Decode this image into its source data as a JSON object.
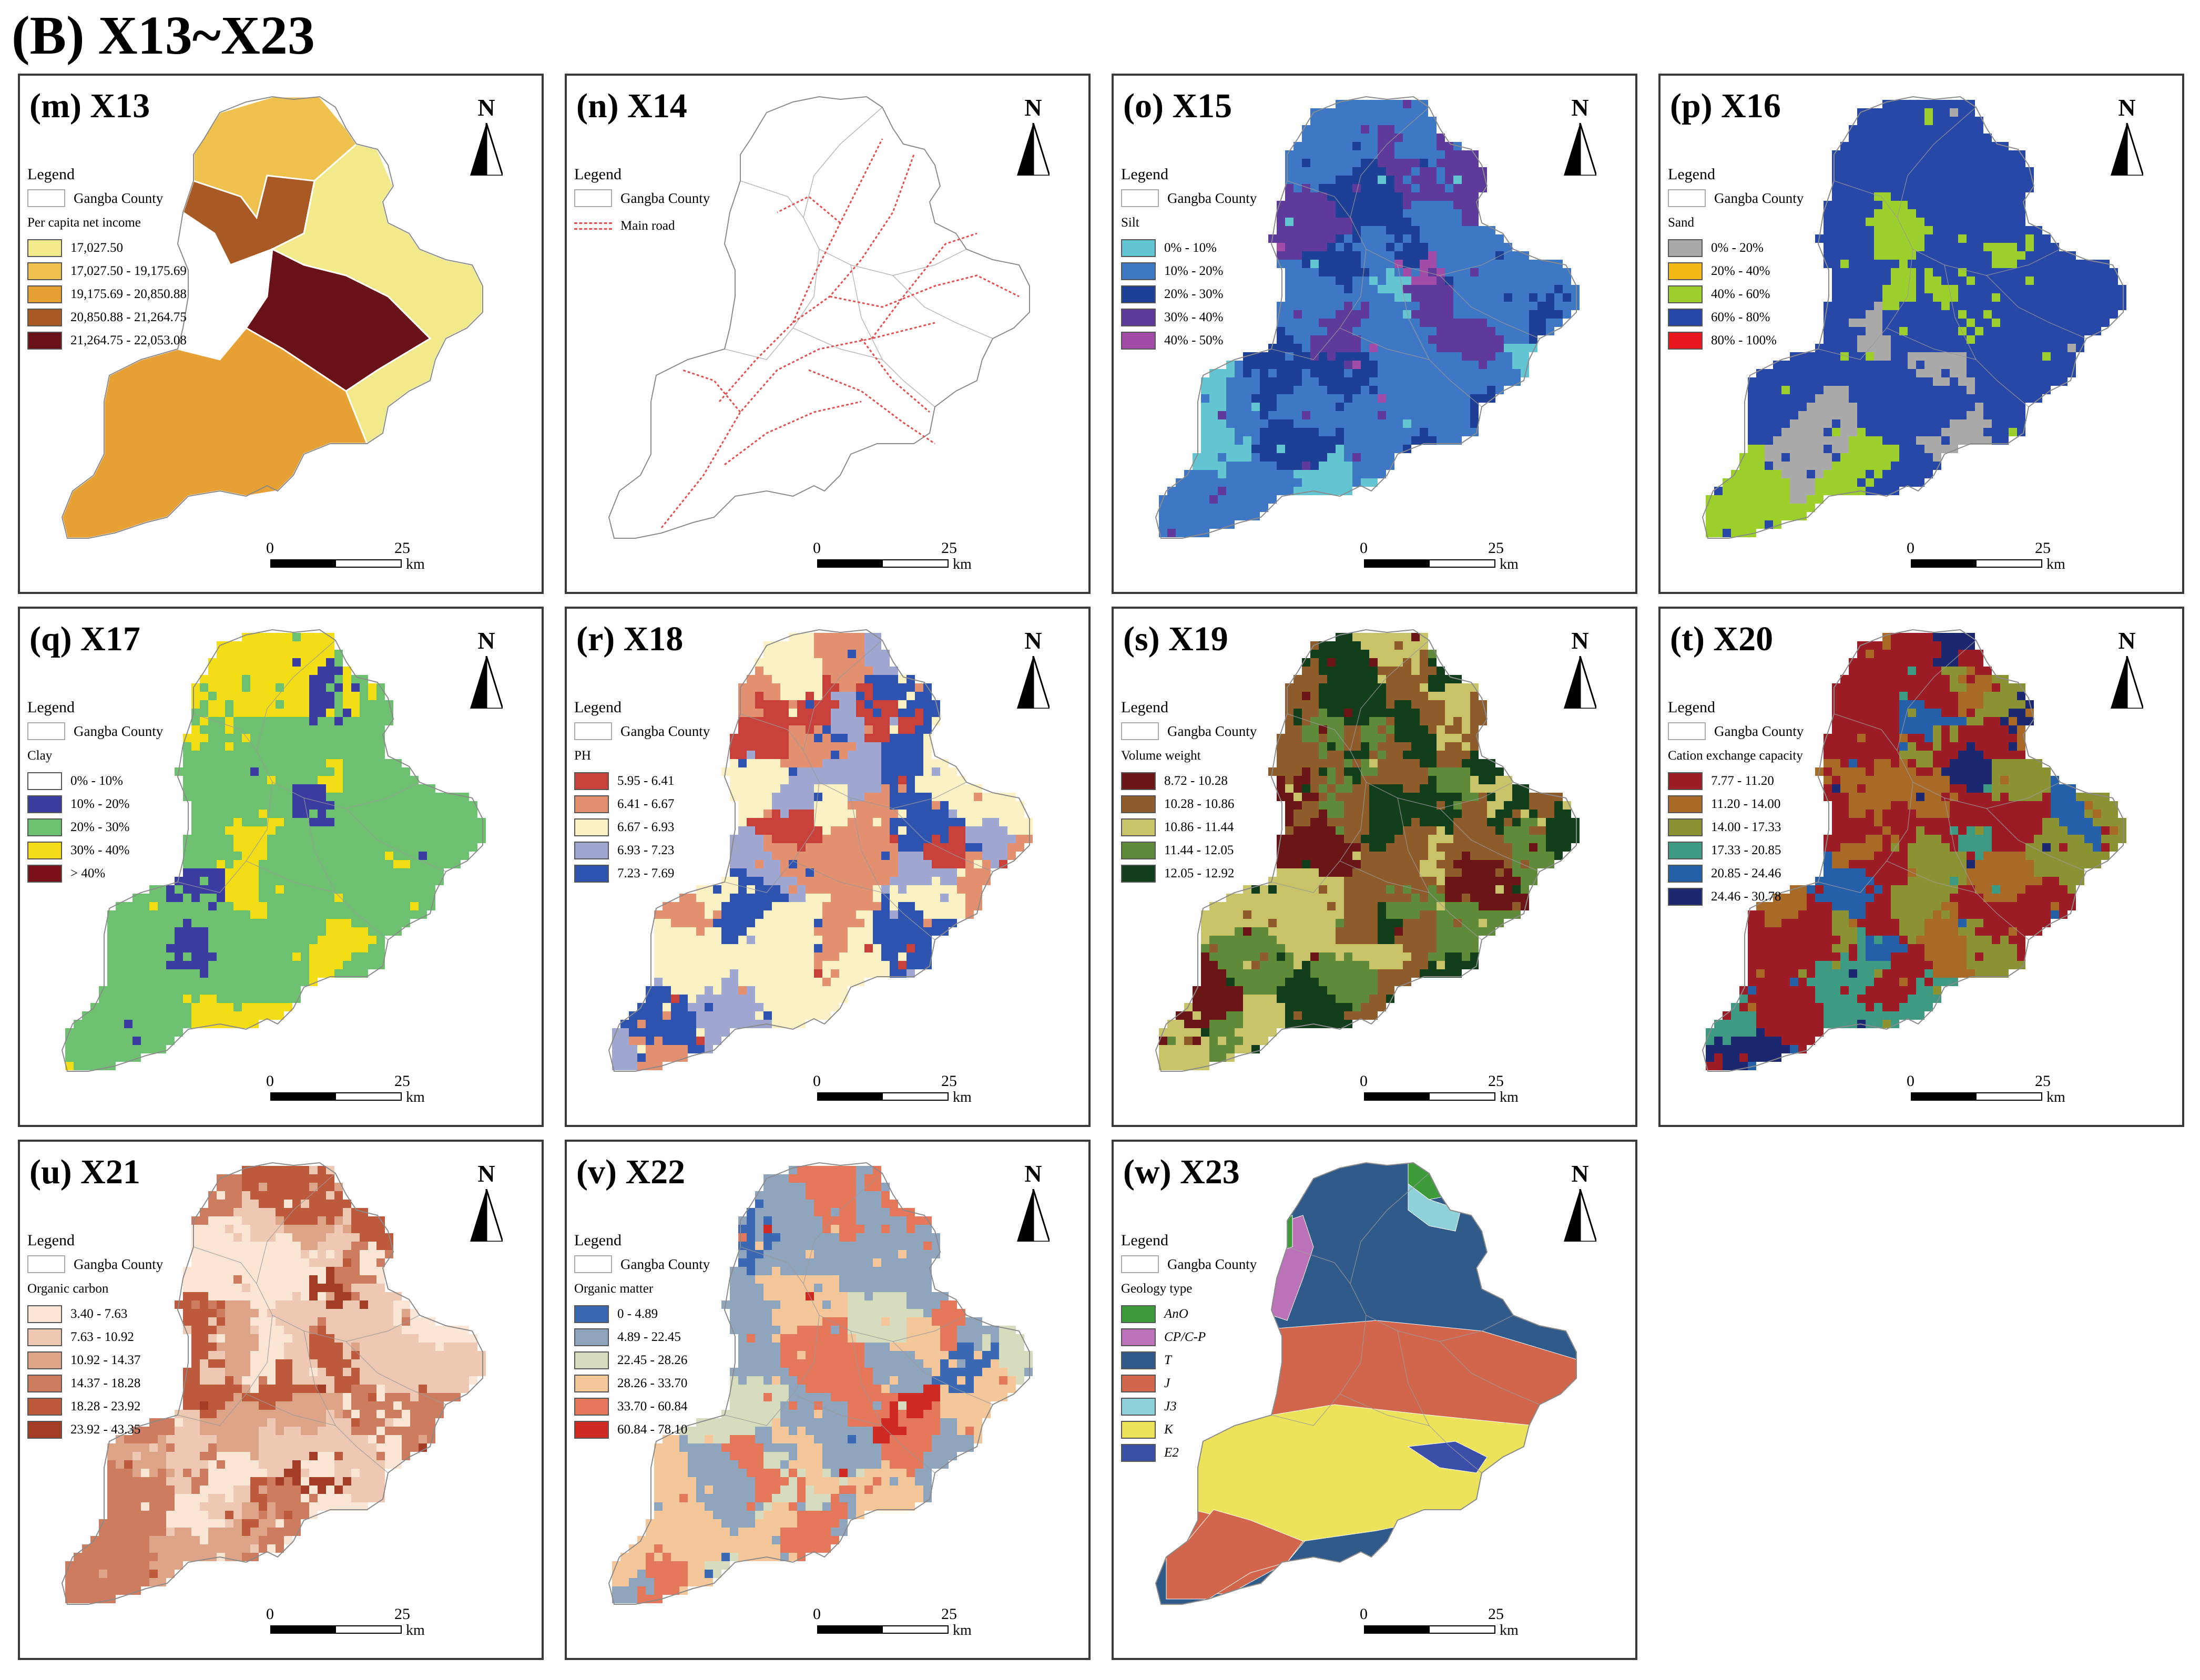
{
  "figure_title": "(B) X13~X23",
  "common": {
    "legend_heading": "Legend",
    "boundary_label": "Gangba County",
    "north_label": "N",
    "scale_start": "0",
    "scale_end": "25",
    "scale_unit": "km"
  },
  "panels": [
    {
      "id": "m",
      "title": "(m) X13",
      "type": "choropleth",
      "subtitle": "Per capita net income",
      "classes": [
        {
          "label": "17,027.50",
          "color": "#f2e98a"
        },
        {
          "label": "17,027.50 - 19,175.69",
          "color": "#efc24f"
        },
        {
          "label": "19,175.69 - 20,850.88",
          "color": "#e6a033"
        },
        {
          "label": "20,850.88 - 21,264.75",
          "color": "#a95a24"
        },
        {
          "label": "21,264.75 - 22,053.08",
          "color": "#6b1218"
        }
      ]
    },
    {
      "id": "n",
      "title": "(n) X14",
      "type": "roads",
      "road_label": "Main road",
      "road_color": "#e05050"
    },
    {
      "id": "o",
      "title": "(o) X15",
      "type": "raster",
      "subtitle": "Silt",
      "classes": [
        {
          "label": "0% - 10%",
          "color": "#63c4d2"
        },
        {
          "label": "10% - 20%",
          "color": "#3e78c4"
        },
        {
          "label": "20% - 30%",
          "color": "#1d3f96"
        },
        {
          "label": "30% - 40%",
          "color": "#5e3a9a"
        },
        {
          "label": "40% - 50%",
          "color": "#a14ca6"
        }
      ],
      "weights": [
        0.08,
        0.58,
        0.14,
        0.14,
        0.06
      ]
    },
    {
      "id": "p",
      "title": "(p) X16",
      "type": "raster",
      "subtitle": "Sand",
      "classes": [
        {
          "label": "0% - 20%",
          "color": "#a9a9a9"
        },
        {
          "label": "20% - 40%",
          "color": "#f4b915"
        },
        {
          "label": "40% - 60%",
          "color": "#9ccf2b"
        },
        {
          "label": "60% - 80%",
          "color": "#2848a8"
        },
        {
          "label": "80% - 100%",
          "color": "#e8171d"
        }
      ],
      "weights": [
        0.06,
        0.0,
        0.18,
        0.76,
        0.0
      ]
    },
    {
      "id": "q",
      "title": "(q) X17",
      "type": "raster",
      "subtitle": "Clay",
      "classes": [
        {
          "label": "0% - 10%",
          "color": "#ffffff"
        },
        {
          "label": "10% - 20%",
          "color": "#3b3ca0"
        },
        {
          "label": "20% - 30%",
          "color": "#6fc172"
        },
        {
          "label": "30% - 40%",
          "color": "#f2dd16"
        },
        {
          "label": "> 40%",
          "color": "#7a1018"
        }
      ],
      "weights": [
        0.0,
        0.07,
        0.66,
        0.27,
        0.0
      ]
    },
    {
      "id": "r",
      "title": "(r) X18",
      "type": "raster",
      "subtitle": "PH",
      "classes": [
        {
          "label": "5.95 - 6.41",
          "color": "#c8413b"
        },
        {
          "label": "6.41 - 6.67",
          "color": "#e39071"
        },
        {
          "label": "6.67 - 6.93",
          "color": "#faf1c4"
        },
        {
          "label": "6.93 - 7.23",
          "color": "#9fa6cf"
        },
        {
          "label": "7.23 - 7.69",
          "color": "#2f54b0"
        }
      ],
      "weights": [
        0.14,
        0.18,
        0.36,
        0.16,
        0.16
      ]
    },
    {
      "id": "s",
      "title": "(s) X19",
      "type": "raster",
      "subtitle": "Volume weight",
      "classes": [
        {
          "label": "8.72 - 10.28",
          "color": "#6a1516"
        },
        {
          "label": "10.28 - 10.86",
          "color": "#8d5c2a"
        },
        {
          "label": "10.86 - 11.44",
          "color": "#c9c46a"
        },
        {
          "label": "11.44 - 12.05",
          "color": "#5f8a3a"
        },
        {
          "label": "12.05 - 12.92",
          "color": "#123e1c"
        }
      ],
      "weights": [
        0.12,
        0.32,
        0.24,
        0.12,
        0.2
      ]
    },
    {
      "id": "t",
      "title": "(t) X20",
      "type": "raster",
      "subtitle": "Cation exchange capacity",
      "classes": [
        {
          "label": "7.77 - 11.20",
          "color": "#9c1c26"
        },
        {
          "label": "11.20 - 14.00",
          "color": "#a86a26"
        },
        {
          "label": "14.00 - 17.33",
          "color": "#8a9234"
        },
        {
          "label": "17.33 - 20.85",
          "color": "#3f9a84"
        },
        {
          "label": "20.85 - 24.46",
          "color": "#255fa8"
        },
        {
          "label": "24.46 - 30.78",
          "color": "#1b2870"
        }
      ],
      "weights": [
        0.5,
        0.14,
        0.1,
        0.1,
        0.1,
        0.06
      ]
    },
    {
      "id": "u",
      "title": "(u) X21",
      "type": "raster",
      "subtitle": "Organic carbon",
      "classes": [
        {
          "label": "3.40 - 7.63",
          "color": "#fbe6d6"
        },
        {
          "label": "7.63 - 10.92",
          "color": "#efc8b3"
        },
        {
          "label": "10.92 - 14.37",
          "color": "#dea487"
        },
        {
          "label": "14.37 - 18.28",
          "color": "#cd7c5f"
        },
        {
          "label": "18.28 - 23.92",
          "color": "#be5a3c"
        },
        {
          "label": "23.92 - 43.35",
          "color": "#a33d25"
        }
      ],
      "weights": [
        0.3,
        0.26,
        0.18,
        0.12,
        0.09,
        0.05
      ]
    },
    {
      "id": "v",
      "title": "(v) X22",
      "type": "raster",
      "subtitle": "Organic matter",
      "classes": [
        {
          "label": "0 - 4.89",
          "color": "#3a68b2"
        },
        {
          "label": "4.89 - 22.45",
          "color": "#8fa5bd"
        },
        {
          "label": "22.45 - 28.26",
          "color": "#d8dcbf"
        },
        {
          "label": "28.26 - 33.70",
          "color": "#f4c79b"
        },
        {
          "label": "33.70 - 60.84",
          "color": "#e5775a"
        },
        {
          "label": "60.84 - 78.10",
          "color": "#cf2a22"
        }
      ],
      "weights": [
        0.02,
        0.28,
        0.12,
        0.26,
        0.3,
        0.02
      ]
    },
    {
      "id": "w",
      "title": "(w) X23",
      "type": "geology",
      "subtitle": "Geology type",
      "classes": [
        {
          "label": "AnO",
          "color": "#3e9b3a"
        },
        {
          "label": "CP/C-P",
          "color": "#bb72b8"
        },
        {
          "label": "T",
          "color": "#2f5a8a"
        },
        {
          "label": "J",
          "color": "#d2664c"
        },
        {
          "label": "J3",
          "color": "#8fd1d8"
        },
        {
          "label": "K",
          "color": "#ede35a"
        },
        {
          "label": "E2",
          "color": "#3b4ea8"
        }
      ]
    }
  ]
}
